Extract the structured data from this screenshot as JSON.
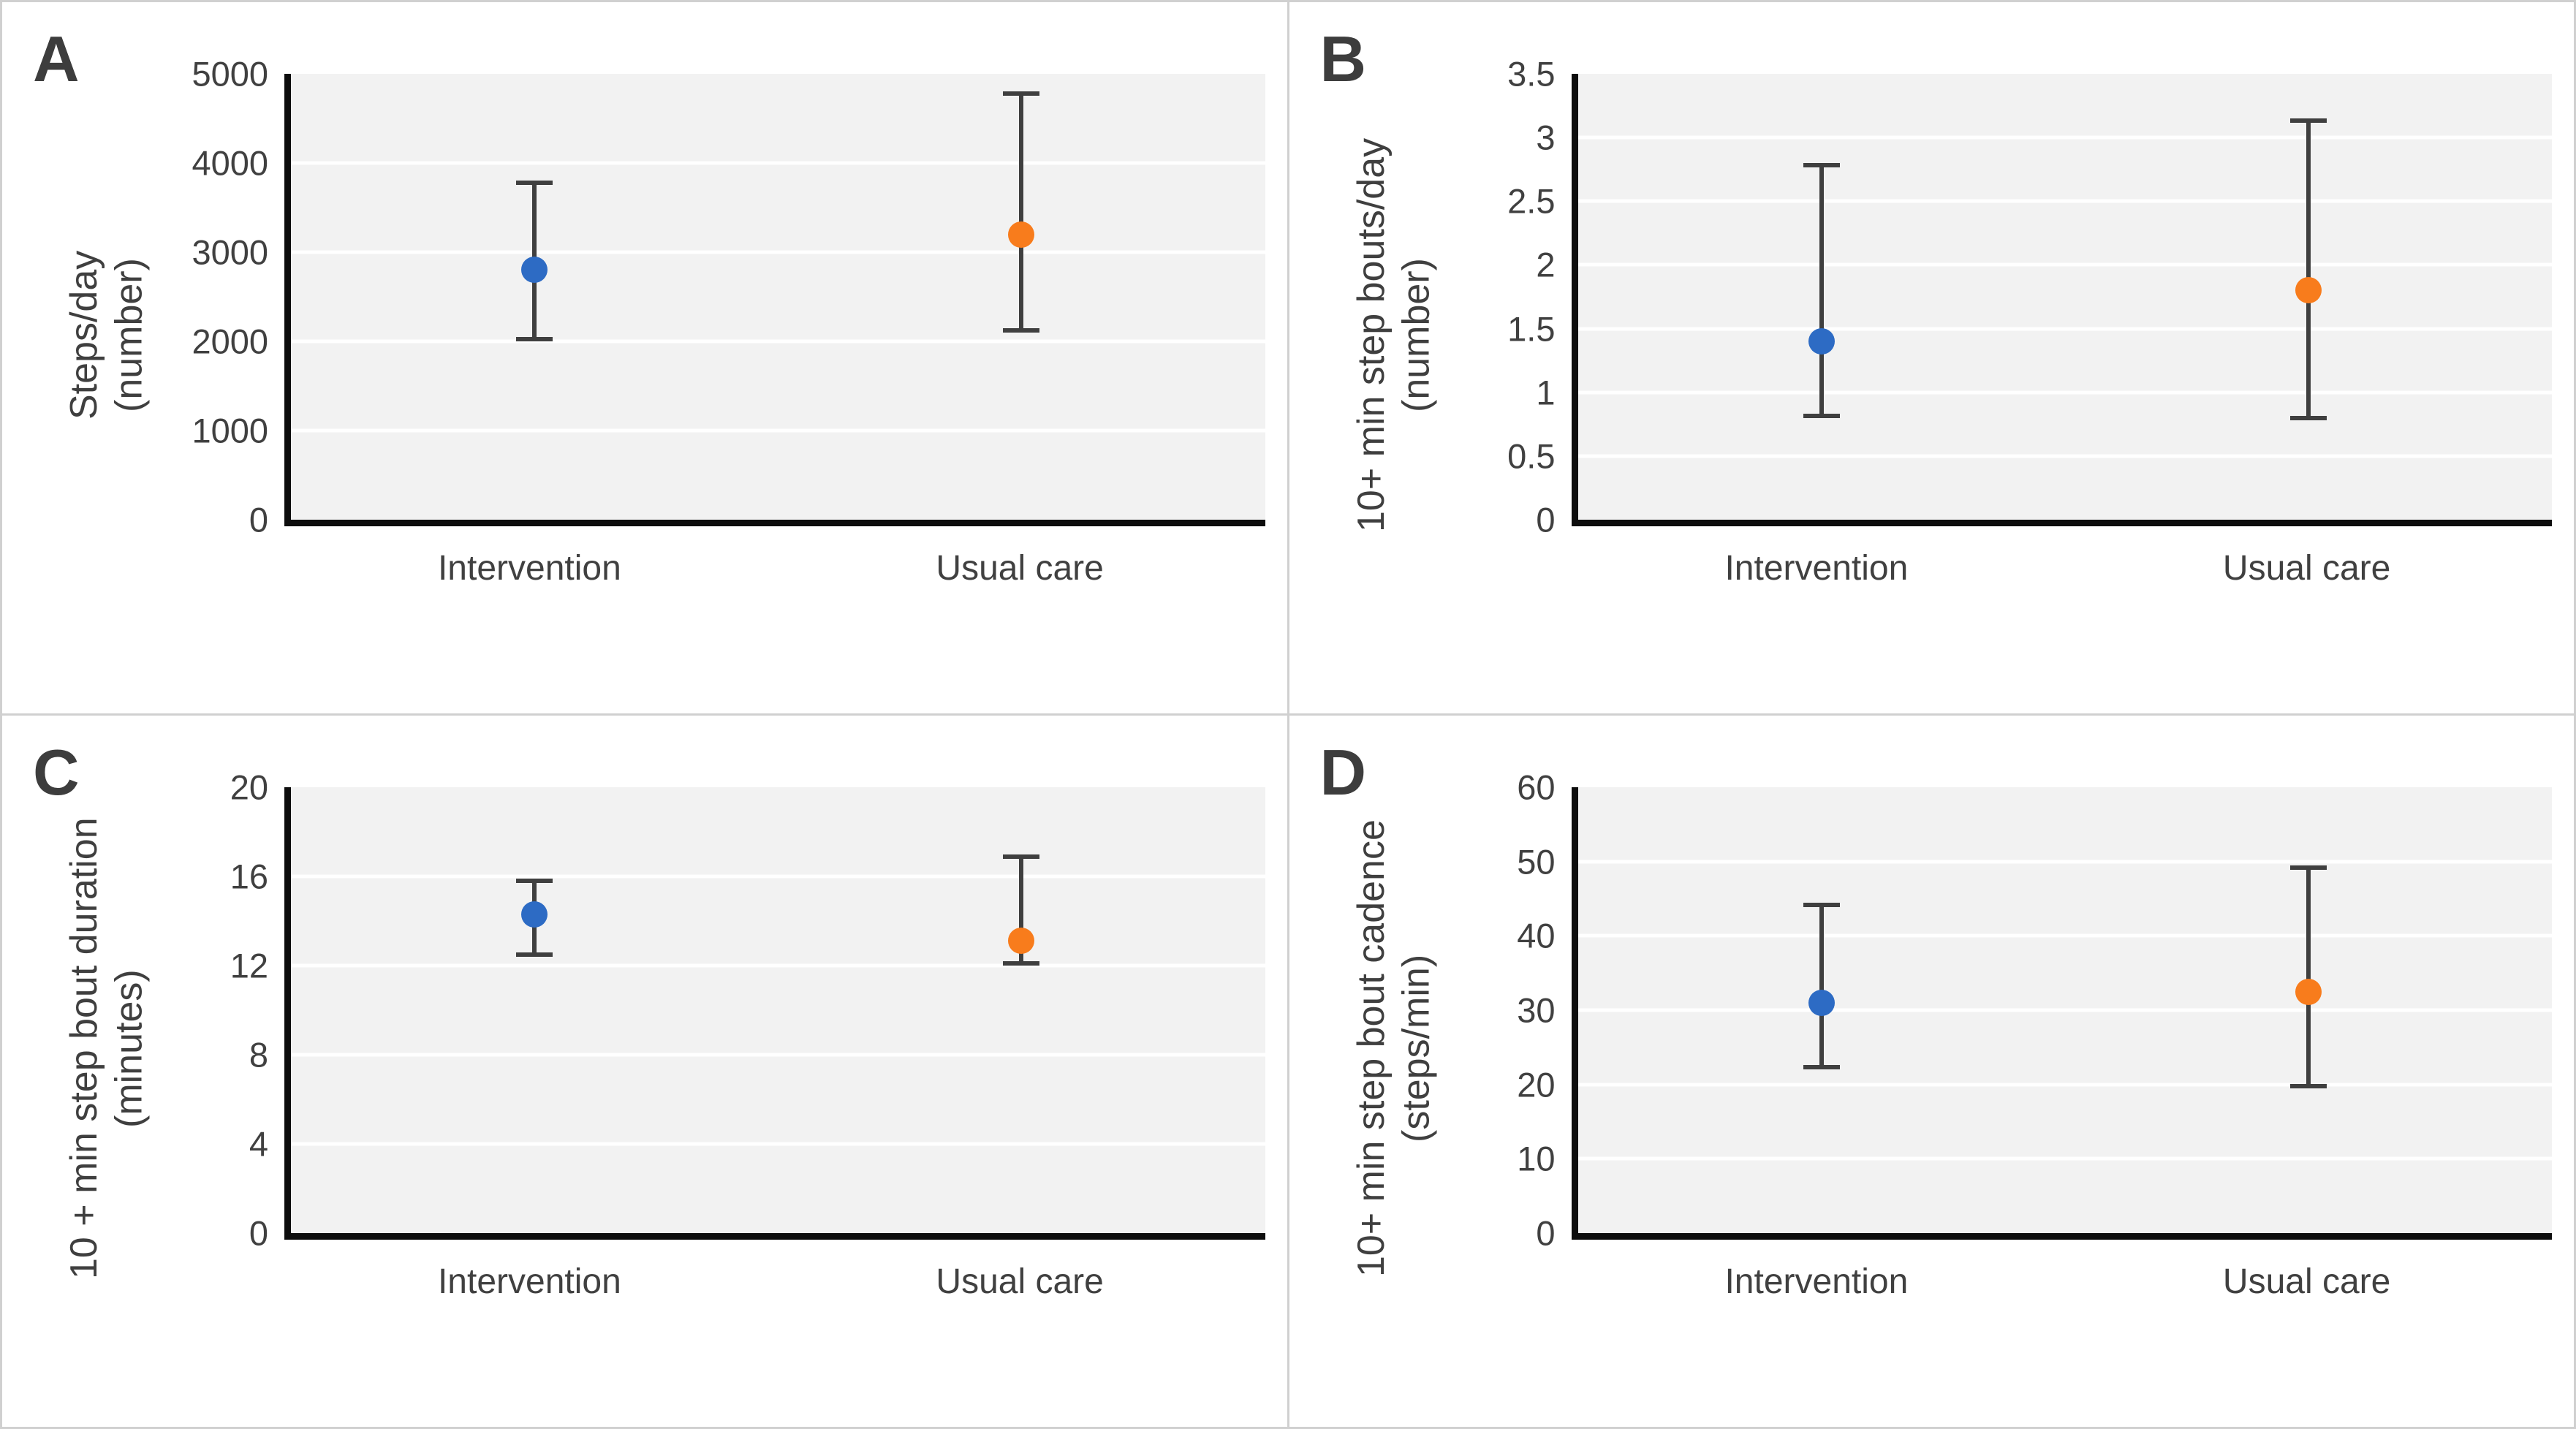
{
  "figure": {
    "border_color": "#d0d0d0",
    "plot_background": "#f2f2f2",
    "gridline_color": "#ffffff",
    "axis_color": "#0d0d0d",
    "error_bar_color": "#3f3f3f",
    "text_color": "#404040",
    "series_colors": {
      "intervention_blue": "#2d6bc4",
      "usual_care_orange": "#f87c1c"
    }
  },
  "chart_data": [
    {
      "type": "scatter",
      "panel": "A",
      "ylabel_lines": [
        "Steps/day",
        "(number)"
      ],
      "ylabel": "Steps/day (number)",
      "categories": [
        "Intervention",
        "Usual care"
      ],
      "ylim": [
        0,
        5000
      ],
      "yticks": [
        "0",
        "1000",
        "2000",
        "3000",
        "4000",
        "5000"
      ],
      "grid": true,
      "legend": "none",
      "series": [
        {
          "name": "Intervention",
          "y": 2800,
          "ci": [
            2000,
            3800
          ],
          "color": "#2d6bc4"
        },
        {
          "name": "Usual care",
          "y": 3200,
          "ci": [
            2100,
            4800
          ],
          "color": "#f87c1c"
        }
      ]
    },
    {
      "type": "scatter",
      "panel": "B",
      "ylabel_lines": [
        "10+ min step bouts/day",
        "(number)"
      ],
      "ylabel": "10+ min step bouts/day (number)",
      "categories": [
        "Intervention",
        "Usual care"
      ],
      "ylim": [
        0,
        3.5
      ],
      "yticks": [
        "0",
        "0.5",
        "1",
        "1.5",
        "2",
        "2.5",
        "3",
        "3.5"
      ],
      "grid": true,
      "legend": "none",
      "series": [
        {
          "name": "Intervention",
          "y": 1.4,
          "ci": [
            0.8,
            2.8
          ],
          "color": "#2d6bc4"
        },
        {
          "name": "Usual care",
          "y": 1.8,
          "ci": [
            0.78,
            3.15
          ],
          "color": "#f87c1c"
        }
      ]
    },
    {
      "type": "scatter",
      "panel": "C",
      "ylabel_lines": [
        "10 + min step bout duration",
        "(minutes)"
      ],
      "ylabel": "10 + min step bout duration (minutes)",
      "categories": [
        "Intervention",
        "Usual care"
      ],
      "ylim": [
        0,
        20
      ],
      "yticks": [
        "0",
        "4",
        "8",
        "12",
        "16",
        "20"
      ],
      "grid": true,
      "legend": "none",
      "series": [
        {
          "name": "Intervention",
          "y": 14.3,
          "ci": [
            12.4,
            15.9
          ],
          "color": "#2d6bc4"
        },
        {
          "name": "Usual care",
          "y": 13.1,
          "ci": [
            12.0,
            17.0
          ],
          "color": "#f87c1c"
        }
      ]
    },
    {
      "type": "scatter",
      "panel": "D",
      "ylabel_lines": [
        "10+ min step bout cadence",
        "(steps/min)"
      ],
      "ylabel": "10+ min step bout cadence (steps/min)",
      "categories": [
        "Intervention",
        "Usual care"
      ],
      "ylim": [
        0,
        60
      ],
      "yticks": [
        "0",
        "10",
        "20",
        "30",
        "40",
        "50",
        "60"
      ],
      "grid": true,
      "legend": "none",
      "series": [
        {
          "name": "Intervention",
          "y": 31,
          "ci": [
            22,
            44.5
          ],
          "color": "#2d6bc4"
        },
        {
          "name": "Usual care",
          "y": 32.5,
          "ci": [
            19.5,
            49.5
          ],
          "color": "#f87c1c"
        }
      ]
    }
  ]
}
